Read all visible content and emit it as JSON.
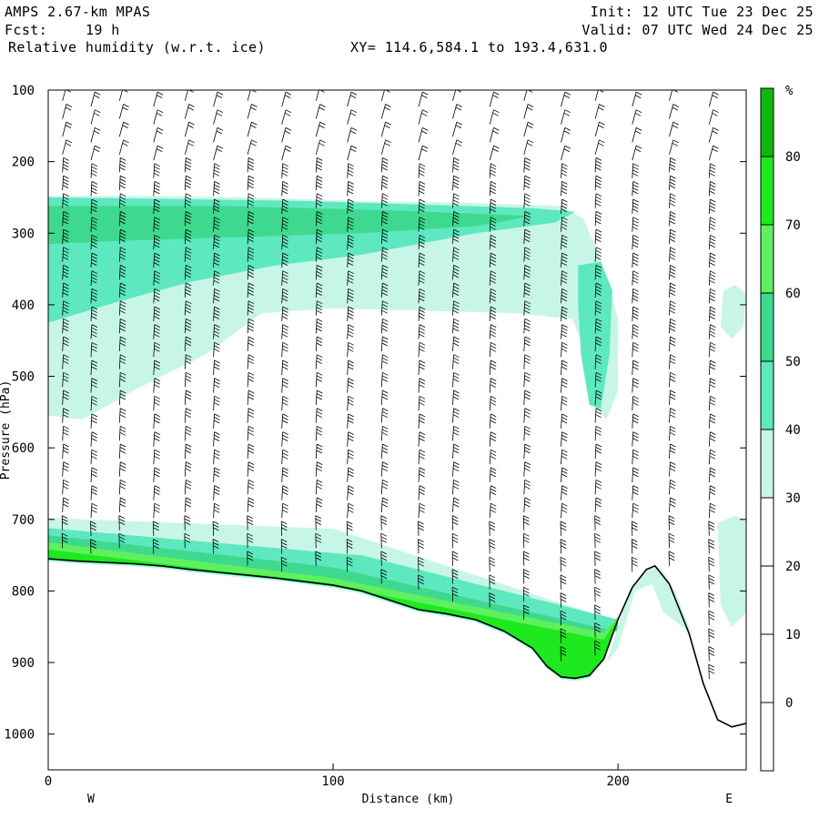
{
  "header": {
    "model": "AMPS 2.67-km MPAS",
    "forecast_label": "Fcst:",
    "forecast_value": "19 h",
    "field": "Relative humidity (w.r.t. ice)",
    "section": "XY= 114.6,584.1 to 193.4,631.0",
    "init": "Init: 12 UTC Tue 23 Dec 25",
    "valid": "Valid: 07 UTC Wed 24 Dec 25"
  },
  "chart_data": {
    "type": "contour-cross-section",
    "xlabel": "Distance (km)",
    "ylabel": "Pressure (hPa)",
    "xlim": [
      0,
      245
    ],
    "ylim": [
      1050,
      100
    ],
    "xticks": [
      0,
      100,
      200
    ],
    "yticks": [
      100,
      200,
      300,
      400,
      500,
      600,
      700,
      800,
      900,
      1000
    ],
    "x_end_labels": {
      "left": "W",
      "right": "E"
    },
    "colorbar": {
      "unit": "%",
      "levels": [
        0,
        10,
        20,
        30,
        40,
        50,
        60,
        70,
        80
      ],
      "filled": [
        {
          "from": 30,
          "to": 40,
          "color": "#c8f6e6"
        },
        {
          "from": 40,
          "to": 50,
          "color": "#5ee8c0"
        },
        {
          "from": 50,
          "to": 60,
          "color": "#3ed98e"
        },
        {
          "from": 60,
          "to": 70,
          "color": "#5ef05e"
        },
        {
          "from": 70,
          "to": 80,
          "color": "#1ee81e"
        },
        {
          "from": 80,
          "to": 100,
          "color": "#0fb80f"
        }
      ]
    },
    "terrain_pressure": [
      [
        0,
        755
      ],
      [
        10,
        758
      ],
      [
        20,
        760
      ],
      [
        30,
        762
      ],
      [
        40,
        765
      ],
      [
        50,
        770
      ],
      [
        60,
        774
      ],
      [
        70,
        778
      ],
      [
        80,
        782
      ],
      [
        90,
        787
      ],
      [
        100,
        792
      ],
      [
        110,
        800
      ],
      [
        120,
        813
      ],
      [
        130,
        826
      ],
      [
        140,
        832
      ],
      [
        150,
        840
      ],
      [
        160,
        856
      ],
      [
        170,
        880
      ],
      [
        175,
        905
      ],
      [
        180,
        920
      ],
      [
        185,
        922
      ],
      [
        190,
        918
      ],
      [
        195,
        895
      ],
      [
        200,
        840
      ],
      [
        205,
        795
      ],
      [
        210,
        770
      ],
      [
        213,
        765
      ],
      [
        218,
        790
      ],
      [
        225,
        860
      ],
      [
        230,
        930
      ],
      [
        235,
        980
      ],
      [
        240,
        990
      ],
      [
        245,
        985
      ]
    ],
    "wind_barb_columns_km": [
      5,
      15,
      25,
      37,
      48,
      58,
      70,
      82,
      94,
      105,
      117,
      130,
      142,
      155,
      167,
      180,
      192,
      205,
      218,
      232
    ],
    "wind_barb_pressure_step_hPa": 25
  }
}
